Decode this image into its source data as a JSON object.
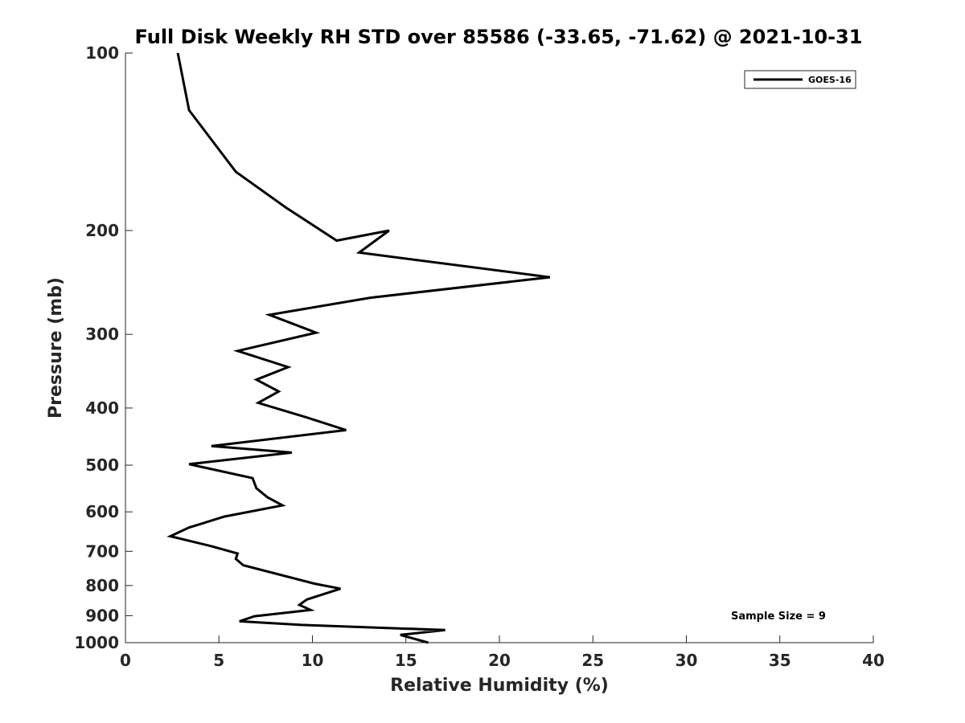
{
  "chart_data": {
    "type": "line",
    "title": "Full Disk Weekly RH STD over 85586 (-33.65, -71.62) @ 2021-10-31",
    "xlabel": "Relative Humidity (%)",
    "ylabel": "Pressure (mb)",
    "xlim": [
      0,
      40
    ],
    "ylim": [
      100,
      1000
    ],
    "y_scale": "log",
    "y_direction": "reversed",
    "x_ticks": [
      0,
      5,
      10,
      15,
      20,
      25,
      30,
      35,
      40
    ],
    "y_ticks": [
      100,
      200,
      300,
      400,
      500,
      600,
      700,
      800,
      900,
      1000
    ],
    "grid": false,
    "legend_position": "top-right",
    "series": [
      {
        "name": "GOES-16",
        "color": "#000000",
        "points": [
          [
            2.8,
            100
          ],
          [
            3.4,
            125
          ],
          [
            5.9,
            159
          ],
          [
            8.6,
            183
          ],
          [
            11.3,
            208
          ],
          [
            14.1,
            200
          ],
          [
            12.5,
            218
          ],
          [
            22.7,
            240
          ],
          [
            13.1,
            260
          ],
          [
            7.7,
            278
          ],
          [
            10.2,
            298
          ],
          [
            6.0,
            320
          ],
          [
            8.7,
            341
          ],
          [
            7.0,
            358
          ],
          [
            8.2,
            375
          ],
          [
            7.1,
            392
          ],
          [
            9.8,
            416
          ],
          [
            11.8,
            436
          ],
          [
            4.6,
            464
          ],
          [
            8.9,
            476
          ],
          [
            3.4,
            498
          ],
          [
            6.8,
            526
          ],
          [
            7.0,
            547
          ],
          [
            7.6,
            567
          ],
          [
            8.4,
            585
          ],
          [
            5.3,
            611
          ],
          [
            3.4,
            638
          ],
          [
            2.4,
            660
          ],
          [
            4.6,
            686
          ],
          [
            6.0,
            706
          ],
          [
            5.9,
            721
          ],
          [
            6.3,
            739
          ],
          [
            10.1,
            794
          ],
          [
            11.5,
            810
          ],
          [
            9.7,
            845
          ],
          [
            9.3,
            863
          ],
          [
            9.9,
            880
          ],
          [
            6.9,
            902
          ],
          [
            6.1,
            920
          ],
          [
            9.4,
            933
          ],
          [
            17.1,
            952
          ],
          [
            14.7,
            970
          ],
          [
            16.2,
            1000
          ]
        ]
      }
    ],
    "annotations": [
      "Sample Size = 9"
    ]
  }
}
